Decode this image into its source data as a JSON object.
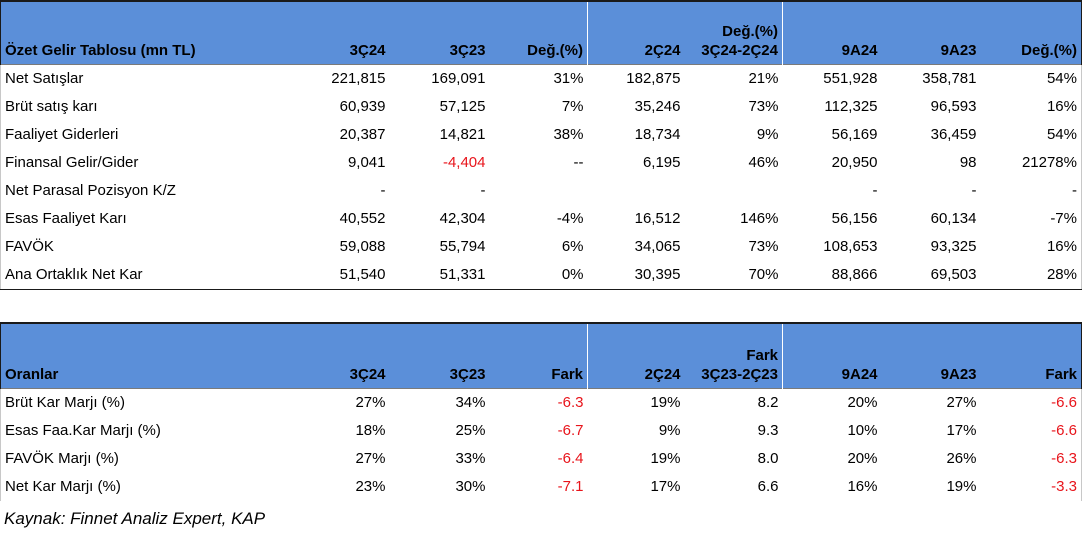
{
  "income_table": {
    "headers": [
      "Özet Gelir Tablosu (mn TL)",
      "3Ç24",
      "3Ç23",
      "Değ.(%)",
      "2Ç24",
      "Değ.(%)\n3Ç24-2Ç24",
      "9A24",
      "9A23",
      "Değ.(%)"
    ],
    "rows": [
      {
        "cells": [
          "Net Satışlar",
          "221,815",
          "169,091",
          "31%",
          "182,875",
          "21%",
          "551,928",
          "358,781",
          "54%"
        ]
      },
      {
        "cells": [
          "Brüt satış karı",
          "60,939",
          "57,125",
          "7%",
          "35,246",
          "73%",
          "112,325",
          "96,593",
          "16%"
        ]
      },
      {
        "cells": [
          "Faaliyet Giderleri",
          "20,387",
          "14,821",
          "38%",
          "18,734",
          "9%",
          "56,169",
          "36,459",
          "54%"
        ]
      },
      {
        "cells": [
          "Finansal Gelir/Gider",
          "9,041",
          "-4,404",
          "--",
          "6,195",
          "46%",
          "20,950",
          "98",
          "21278%"
        ],
        "negative_cols": [
          2
        ]
      },
      {
        "cells": [
          "Net Parasal Pozisyon K/Z",
          "-",
          "-",
          "",
          "",
          "",
          "-",
          "-",
          "-"
        ]
      },
      {
        "cells": [
          "Esas Faaliyet Karı",
          "40,552",
          "42,304",
          "-4%",
          "16,512",
          "146%",
          "56,156",
          "60,134",
          "-7%"
        ]
      },
      {
        "cells": [
          "FAVÖK",
          "59,088",
          "55,794",
          "6%",
          "34,065",
          "73%",
          "108,653",
          "93,325",
          "16%"
        ]
      },
      {
        "cells": [
          "Ana Ortaklık Net Kar",
          "51,540",
          "51,331",
          "0%",
          "30,395",
          "70%",
          "88,866",
          "69,503",
          "28%"
        ]
      }
    ]
  },
  "ratio_table": {
    "headers": [
      "Oranlar",
      "3Ç24",
      "3Ç23",
      "Fark",
      "2Ç24",
      "Fark\n3Ç23-2Ç23",
      "9A24",
      "9A23",
      "Fark"
    ],
    "rows": [
      {
        "cells": [
          "Brüt Kar Marjı (%)",
          "27%",
          "34%",
          "-6.3",
          "19%",
          "8.2",
          "20%",
          "27%",
          "-6.6"
        ],
        "negative_cols": [
          3,
          8
        ]
      },
      {
        "cells": [
          "Esas Faa.Kar Marjı (%)",
          "18%",
          "25%",
          "-6.7",
          "9%",
          "9.3",
          "10%",
          "17%",
          "-6.6"
        ],
        "negative_cols": [
          3,
          8
        ]
      },
      {
        "cells": [
          "FAVÖK Marjı (%)",
          "27%",
          "33%",
          "-6.4",
          "19%",
          "8.0",
          "20%",
          "26%",
          "-6.3"
        ],
        "negative_cols": [
          3,
          8
        ]
      },
      {
        "cells": [
          "Net Kar Marjı (%)",
          "23%",
          "30%",
          "-7.1",
          "17%",
          "6.6",
          "16%",
          "19%",
          "-3.3"
        ],
        "negative_cols": [
          3,
          8
        ]
      }
    ]
  },
  "source_note": "Kaynak: Finnet Analiz Expert, KAP",
  "colors": {
    "header_bg": "#5b8fd9",
    "negative": "#e8141b"
  }
}
